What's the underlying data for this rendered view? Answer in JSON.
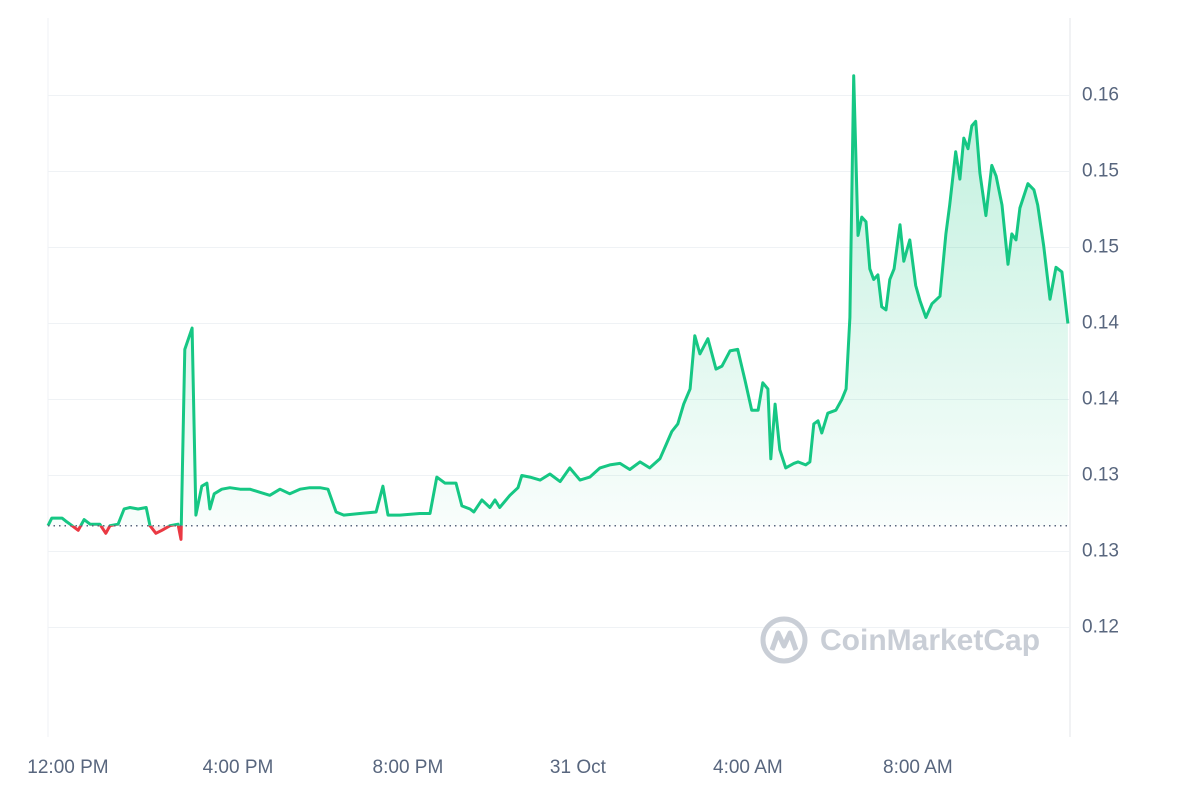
{
  "chart_data": {
    "type": "line",
    "watermark": "CoinMarketCap",
    "baseline": 0.1317,
    "color_up": "#16c784",
    "color_down": "#ea3943",
    "grid": true,
    "xlim": [
      -0.47,
      23.58
    ],
    "xticks": [
      {
        "value": 0,
        "label": "12:00 PM"
      },
      {
        "value": 4,
        "label": "4:00 PM"
      },
      {
        "value": 8,
        "label": "8:00 PM"
      },
      {
        "value": 12,
        "label": "31 Oct"
      },
      {
        "value": 16,
        "label": "4:00 AM"
      },
      {
        "value": 20,
        "label": "8:00 AM"
      }
    ],
    "ylim": [
      0.1178,
      0.1651
    ],
    "yticks": [
      {
        "value": 0.125,
        "label": "0.12"
      },
      {
        "value": 0.13,
        "label": "0.13"
      },
      {
        "value": 0.135,
        "label": "0.13"
      },
      {
        "value": 0.14,
        "label": "0.14"
      },
      {
        "value": 0.145,
        "label": "0.14"
      },
      {
        "value": 0.15,
        "label": "0.15"
      },
      {
        "value": 0.155,
        "label": "0.15"
      },
      {
        "value": 0.16,
        "label": "0.16"
      }
    ],
    "x": [
      -0.47,
      -0.38,
      -0.14,
      -0.05,
      0.05,
      0.24,
      0.38,
      0.52,
      0.75,
      0.89,
      0.99,
      1.18,
      1.32,
      1.46,
      1.65,
      1.84,
      1.93,
      2.07,
      2.21,
      2.4,
      2.59,
      2.66,
      2.75,
      2.92,
      3.01,
      3.15,
      3.27,
      3.34,
      3.44,
      3.62,
      3.81,
      4.05,
      4.28,
      4.52,
      4.75,
      4.99,
      5.22,
      5.46,
      5.69,
      5.93,
      6.12,
      6.31,
      6.49,
      6.87,
      7.25,
      7.41,
      7.53,
      7.81,
      8.28,
      8.52,
      8.68,
      8.87,
      9.13,
      9.27,
      9.46,
      9.55,
      9.74,
      9.93,
      10.05,
      10.16,
      10.4,
      10.59,
      10.68,
      10.87,
      11.11,
      11.34,
      11.58,
      11.81,
      12.05,
      12.28,
      12.52,
      12.75,
      12.99,
      13.22,
      13.46,
      13.69,
      13.93,
      14.07,
      14.21,
      14.35,
      14.49,
      14.64,
      14.75,
      14.87,
      15.06,
      15.25,
      15.39,
      15.58,
      15.76,
      15.93,
      16.09,
      16.24,
      16.35,
      16.47,
      16.54,
      16.64,
      16.75,
      16.89,
      17.08,
      17.18,
      17.36,
      17.46,
      17.55,
      17.65,
      17.74,
      17.88,
      18.07,
      18.21,
      18.31,
      18.4,
      18.49,
      18.59,
      18.68,
      18.78,
      18.87,
      18.96,
      19.06,
      19.15,
      19.25,
      19.34,
      19.44,
      19.58,
      19.67,
      19.81,
      19.95,
      20.05,
      20.19,
      20.33,
      20.52,
      20.66,
      20.75,
      20.89,
      20.99,
      21.08,
      21.18,
      21.27,
      21.36,
      21.46,
      21.6,
      21.74,
      21.84,
      21.98,
      22.12,
      22.21,
      22.31,
      22.4,
      22.59,
      22.73,
      22.82,
      22.96,
      23.11,
      23.25,
      23.39,
      23.53
    ],
    "series": [
      {
        "values": [
          0.1317,
          0.1322,
          0.1322,
          0.132,
          0.1318,
          0.1314,
          0.1321,
          0.1318,
          0.1318,
          0.1312,
          0.1317,
          0.1318,
          0.1328,
          0.1329,
          0.1328,
          0.1329,
          0.1317,
          0.1312,
          0.1314,
          0.1317,
          0.1318,
          0.1308,
          0.1433,
          0.1447,
          0.1324,
          0.1343,
          0.1345,
          0.1328,
          0.1338,
          0.1341,
          0.1342,
          0.1341,
          0.1341,
          0.1339,
          0.1337,
          0.1341,
          0.1338,
          0.1341,
          0.1342,
          0.1342,
          0.1341,
          0.1326,
          0.1324,
          0.1325,
          0.1326,
          0.1343,
          0.1324,
          0.1324,
          0.1325,
          0.1325,
          0.1349,
          0.1345,
          0.1345,
          0.133,
          0.1328,
          0.1326,
          0.1334,
          0.1329,
          0.1334,
          0.1329,
          0.1337,
          0.1342,
          0.135,
          0.1349,
          0.1347,
          0.1351,
          0.1346,
          0.1355,
          0.1347,
          0.1349,
          0.1355,
          0.1357,
          0.1358,
          0.1354,
          0.1359,
          0.1355,
          0.1361,
          0.137,
          0.1379,
          0.1384,
          0.1397,
          0.1407,
          0.1442,
          0.143,
          0.144,
          0.142,
          0.1422,
          0.1432,
          0.1433,
          0.1413,
          0.1393,
          0.1393,
          0.1411,
          0.1407,
          0.1361,
          0.1397,
          0.1367,
          0.1355,
          0.1358,
          0.1359,
          0.1357,
          0.1359,
          0.1384,
          0.1386,
          0.1378,
          0.1391,
          0.1393,
          0.14,
          0.1407,
          0.1454,
          0.1613,
          0.1508,
          0.152,
          0.1517,
          0.1486,
          0.1479,
          0.1482,
          0.1461,
          0.1459,
          0.1479,
          0.1486,
          0.1515,
          0.1491,
          0.1505,
          0.1475,
          0.1465,
          0.1454,
          0.1463,
          0.1468,
          0.1509,
          0.1528,
          0.1563,
          0.1545,
          0.1572,
          0.1565,
          0.158,
          0.1583,
          0.1549,
          0.1521,
          0.1554,
          0.1547,
          0.1528,
          0.1489,
          0.1509,
          0.1505,
          0.1526,
          0.1542,
          0.1538,
          0.1528,
          0.1501,
          0.1466,
          0.1487,
          0.1484,
          0.145
        ]
      }
    ]
  }
}
